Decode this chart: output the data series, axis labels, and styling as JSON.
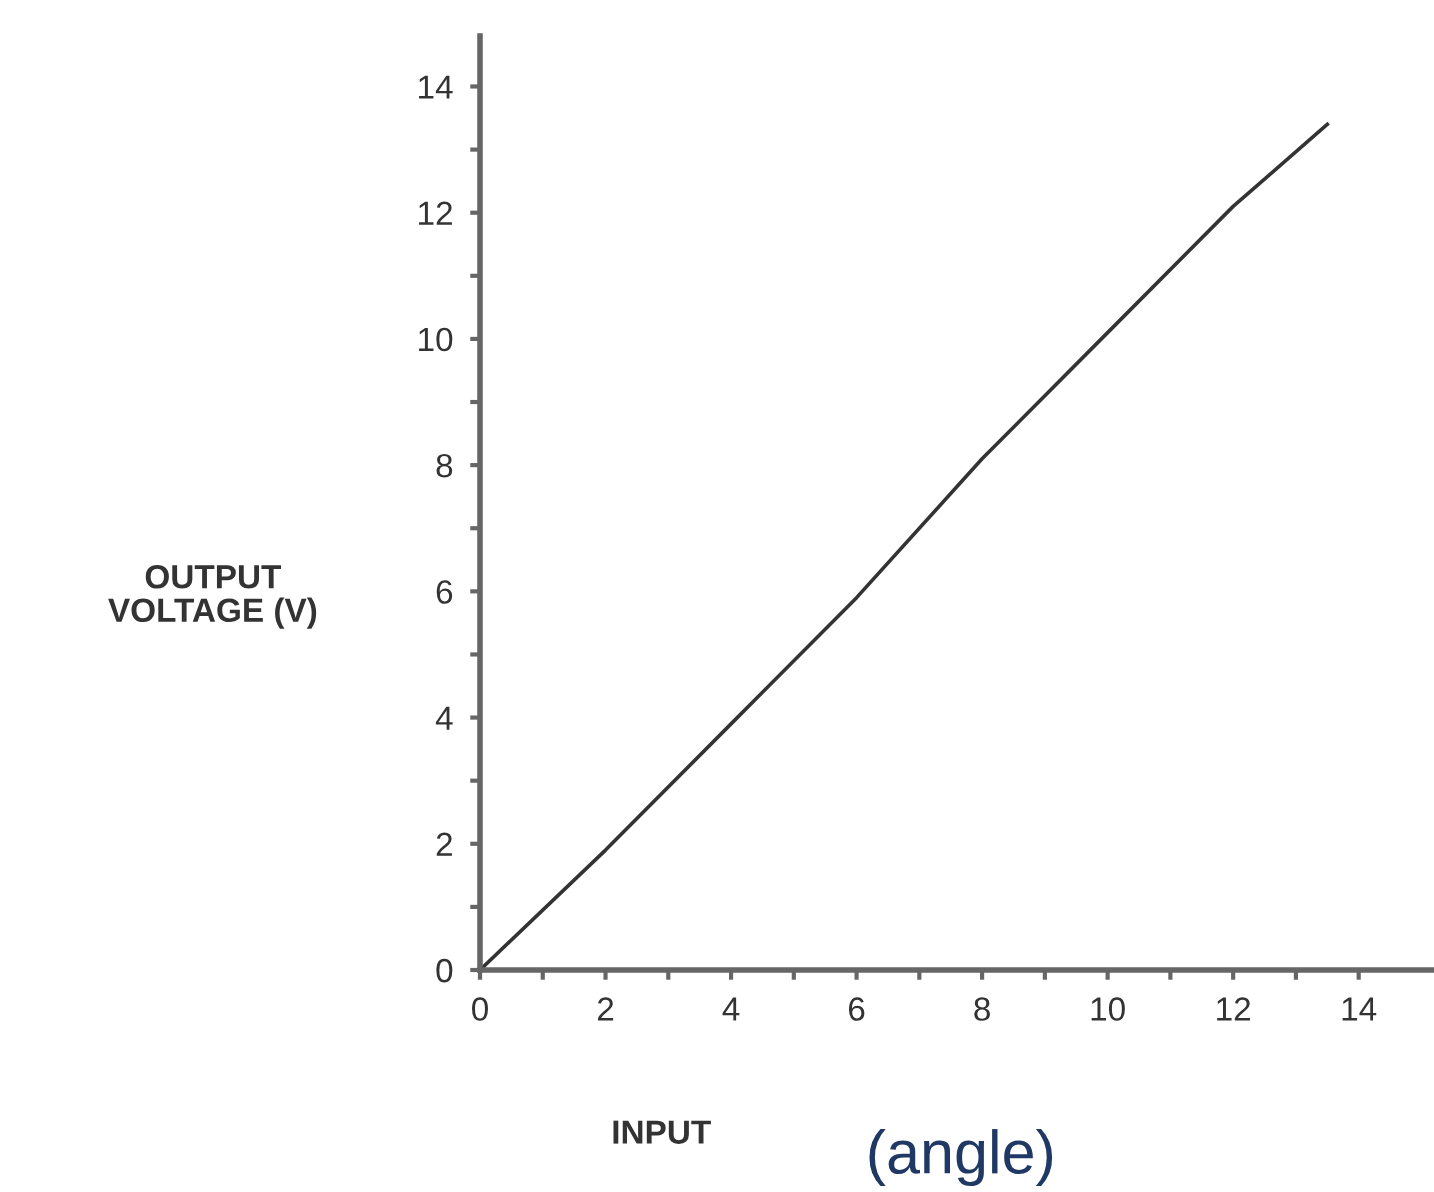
{
  "chart_data": {
    "type": "line",
    "x": [
      0,
      2,
      4,
      6,
      8,
      10,
      12,
      13.5
    ],
    "series": [
      {
        "color": "#333333",
        "values": [
          0,
          1.9,
          3.9,
          5.9,
          8.1,
          10.1,
          12.1,
          13.4
        ]
      }
    ],
    "xlabel": "INPUT",
    "ylabel": "OUTPUT\nVOLTAGE (V)",
    "annotations": [
      "(angle)"
    ],
    "xlim": [
      0,
      15.2
    ],
    "ylim": [
      0,
      14.8
    ],
    "xticks": [
      0,
      {
        "value": 1,
        "label": null
      },
      2,
      {
        "value": 3,
        "label": null
      },
      4,
      {
        "value": 5,
        "label": null
      },
      6,
      {
        "value": 7,
        "label": null
      },
      8,
      {
        "value": 9,
        "label": null
      },
      10,
      {
        "value": 11,
        "label": null
      },
      12,
      {
        "value": 13,
        "label": null
      },
      14
    ],
    "yticks": [
      0,
      {
        "value": 1,
        "label": null
      },
      2,
      {
        "value": 3,
        "label": null
      },
      4,
      {
        "value": 5,
        "label": null
      },
      6,
      {
        "value": 7,
        "label": null
      },
      8,
      {
        "value": 9,
        "label": null
      },
      10,
      {
        "value": 11,
        "label": null
      },
      12,
      {
        "value": 13,
        "label": null
      },
      14
    ],
    "grid": false,
    "legend": false,
    "marker": "none",
    "line_style": "solid"
  }
}
